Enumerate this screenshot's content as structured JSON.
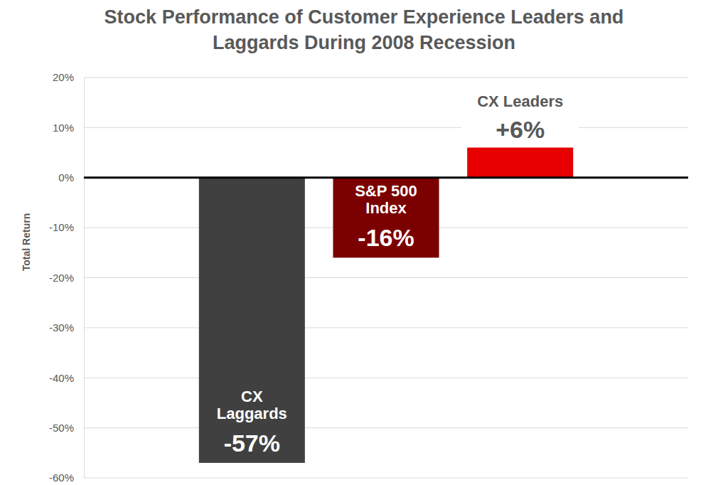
{
  "chart_data": {
    "type": "bar",
    "title": "Stock Performance of Customer Experience Leaders and Laggards During 2008 Recession",
    "ylabel": "Total Return",
    "categories": [
      "CX Laggards",
      "S&P 500 Index",
      "CX Leaders"
    ],
    "values": [
      -57,
      -16,
      6
    ],
    "value_labels": [
      "-57%",
      "-16%",
      "+6%"
    ],
    "colors": [
      "#404040",
      "#7b0000",
      "#e60000"
    ],
    "ylim": [
      -60,
      20
    ],
    "yticks": [
      {
        "value": -60,
        "label": "-60%"
      },
      {
        "value": -50,
        "label": "-50%"
      },
      {
        "value": -40,
        "label": "-40%"
      },
      {
        "value": -30,
        "label": "-30%"
      },
      {
        "value": -20,
        "label": "-20%"
      },
      {
        "value": -10,
        "label": "-10%"
      },
      {
        "value": 0,
        "label": "0%"
      },
      {
        "value": 10,
        "label": "10%"
      },
      {
        "value": 20,
        "label": "20%"
      }
    ],
    "grid": true,
    "data_labels": true,
    "tick_labels": "y"
  }
}
